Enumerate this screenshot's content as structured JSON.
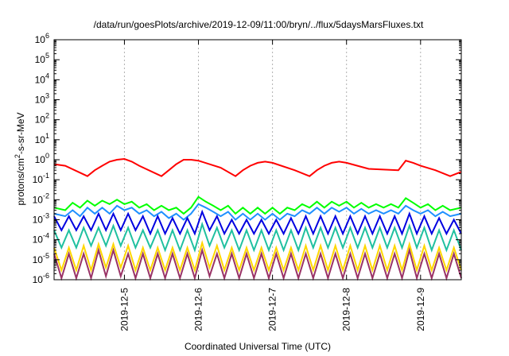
{
  "chart_data": {
    "type": "line",
    "title": "/data/run/goesPlots/archive/2019-12-09/11:00/bryn/../flux/5daysMarsFluxes.txt",
    "xlabel": "Coordinated Universal Time (UTC)",
    "ylabel": "protons/cm²-s-sr-MeV",
    "ylabel_parts": {
      "pre": "protons/cm",
      "sup": "2",
      "post": "-s-sr-MeV"
    },
    "yscale": "log",
    "ylim": [
      1e-06,
      1000000.0
    ],
    "xlim": [
      4.05,
      9.55
    ],
    "grid": "x-only",
    "x_ticks": [
      {
        "value": 5,
        "label": "2019-12-5"
      },
      {
        "value": 6,
        "label": "2019-12-6"
      },
      {
        "value": 7,
        "label": "2019-12-7"
      },
      {
        "value": 8,
        "label": "2019-12-8"
      },
      {
        "value": 9,
        "label": "2019-12-9"
      }
    ],
    "y_ticks": [
      {
        "exp": -6,
        "base": "10",
        "sup": "-6"
      },
      {
        "exp": -5,
        "base": "10",
        "sup": "-5"
      },
      {
        "exp": -4,
        "base": "10",
        "sup": "-4"
      },
      {
        "exp": -3,
        "base": "10",
        "sup": "-3"
      },
      {
        "exp": -2,
        "base": "10",
        "sup": "-2"
      },
      {
        "exp": -1,
        "base": "10",
        "sup": "-1"
      },
      {
        "exp": 0,
        "base": "10",
        "sup": "0"
      },
      {
        "exp": 1,
        "base": "10",
        "sup": "1"
      },
      {
        "exp": 2,
        "base": "10",
        "sup": "2"
      },
      {
        "exp": 3,
        "base": "10",
        "sup": "3"
      },
      {
        "exp": 4,
        "base": "10",
        "sup": "4"
      },
      {
        "exp": 5,
        "base": "10",
        "sup": "5"
      },
      {
        "exp": 6,
        "base": "10",
        "sup": "6"
      }
    ],
    "series": [
      {
        "color": "#ff0000",
        "x": [
          4.05,
          4.2,
          4.5,
          4.6,
          4.7,
          4.8,
          4.9,
          5.0,
          5.1,
          5.2,
          5.5,
          5.6,
          5.7,
          5.8,
          5.9,
          6.0,
          6.3,
          6.5,
          6.6,
          6.7,
          6.8,
          6.9,
          7.0,
          7.3,
          7.5,
          7.6,
          7.7,
          7.8,
          7.9,
          8.0,
          8.3,
          8.7,
          8.8,
          8.9,
          9.0,
          9.2,
          9.4,
          9.55
        ],
        "y": [
          0.6,
          0.5,
          0.15,
          0.3,
          0.5,
          0.8,
          1.0,
          1.1,
          0.8,
          0.5,
          0.15,
          0.3,
          0.6,
          1.0,
          1.0,
          0.9,
          0.4,
          0.15,
          0.3,
          0.5,
          0.7,
          0.8,
          0.7,
          0.3,
          0.15,
          0.3,
          0.5,
          0.7,
          0.8,
          0.7,
          0.35,
          0.3,
          0.9,
          0.7,
          0.5,
          0.3,
          0.15,
          0.25
        ]
      },
      {
        "color": "#00ff00",
        "x": [
          4.05,
          4.2,
          4.3,
          4.4,
          4.5,
          4.6,
          4.7,
          4.8,
          4.9,
          5.0,
          5.1,
          5.2,
          5.3,
          5.4,
          5.5,
          5.6,
          5.7,
          5.8,
          5.9,
          6.0,
          6.1,
          6.2,
          6.3,
          6.4,
          6.5,
          6.6,
          6.7,
          6.8,
          6.9,
          7.0,
          7.1,
          7.2,
          7.3,
          7.4,
          7.5,
          7.6,
          7.7,
          7.8,
          7.9,
          8.0,
          8.1,
          8.2,
          8.3,
          8.4,
          8.5,
          8.6,
          8.7,
          8.8,
          8.9,
          9.0,
          9.1,
          9.2,
          9.3,
          9.4,
          9.55
        ],
        "y": [
          0.004,
          0.003,
          0.007,
          0.004,
          0.009,
          0.005,
          0.009,
          0.006,
          0.01,
          0.006,
          0.008,
          0.004,
          0.006,
          0.003,
          0.005,
          0.003,
          0.004,
          0.002,
          0.004,
          0.014,
          0.008,
          0.005,
          0.003,
          0.005,
          0.002,
          0.004,
          0.002,
          0.004,
          0.002,
          0.004,
          0.002,
          0.004,
          0.003,
          0.006,
          0.004,
          0.008,
          0.004,
          0.008,
          0.005,
          0.008,
          0.004,
          0.007,
          0.004,
          0.006,
          0.004,
          0.006,
          0.004,
          0.012,
          0.007,
          0.004,
          0.006,
          0.003,
          0.005,
          0.003,
          0.004
        ]
      },
      {
        "color": "#1e90ff",
        "x": [
          4.05,
          4.2,
          4.3,
          4.4,
          4.5,
          4.6,
          4.7,
          4.8,
          4.9,
          5.0,
          5.1,
          5.2,
          5.3,
          5.4,
          5.5,
          5.6,
          5.7,
          5.8,
          5.9,
          6.0,
          6.1,
          6.2,
          6.3,
          6.4,
          6.5,
          6.6,
          6.7,
          6.8,
          6.9,
          7.0,
          7.1,
          7.2,
          7.3,
          7.4,
          7.5,
          7.6,
          7.7,
          7.8,
          7.9,
          8.0,
          8.1,
          8.2,
          8.3,
          8.4,
          8.5,
          8.6,
          8.7,
          8.8,
          8.9,
          9.0,
          9.1,
          9.2,
          9.3,
          9.4,
          9.55
        ],
        "y": [
          0.002,
          0.0015,
          0.003,
          0.0015,
          0.004,
          0.002,
          0.004,
          0.002,
          0.005,
          0.003,
          0.004,
          0.002,
          0.003,
          0.0015,
          0.0025,
          0.0012,
          0.002,
          0.001,
          0.002,
          0.006,
          0.004,
          0.0025,
          0.0015,
          0.0025,
          0.001,
          0.002,
          0.001,
          0.002,
          0.001,
          0.002,
          0.001,
          0.002,
          0.0015,
          0.003,
          0.002,
          0.004,
          0.002,
          0.004,
          0.0025,
          0.004,
          0.002,
          0.0035,
          0.002,
          0.003,
          0.002,
          0.003,
          0.002,
          0.005,
          0.003,
          0.002,
          0.003,
          0.0015,
          0.0025,
          0.0015,
          0.002
        ]
      },
      {
        "color": "#0000e0",
        "x": [
          4.05,
          4.15,
          4.25,
          4.35,
          4.45,
          4.55,
          4.65,
          4.75,
          4.85,
          4.95,
          5.05,
          5.15,
          5.25,
          5.35,
          5.45,
          5.55,
          5.65,
          5.75,
          5.85,
          5.95,
          6.05,
          6.15,
          6.25,
          6.35,
          6.45,
          6.55,
          6.65,
          6.75,
          6.85,
          6.95,
          7.05,
          7.15,
          7.25,
          7.35,
          7.45,
          7.55,
          7.65,
          7.75,
          7.85,
          7.95,
          8.05,
          8.15,
          8.25,
          8.35,
          8.45,
          8.55,
          8.65,
          8.75,
          8.85,
          8.95,
          9.05,
          9.15,
          9.25,
          9.35,
          9.45,
          9.55
        ],
        "y": [
          0.0015,
          0.0003,
          0.0015,
          0.0003,
          0.0015,
          0.0003,
          0.002,
          0.0003,
          0.002,
          0.0003,
          0.002,
          0.0003,
          0.0015,
          0.0002,
          0.0015,
          0.0002,
          0.0012,
          0.0002,
          0.0012,
          0.0002,
          0.0025,
          0.0003,
          0.0015,
          0.0002,
          0.001,
          0.0002,
          0.001,
          0.0002,
          0.001,
          0.0002,
          0.001,
          0.0002,
          0.0012,
          0.0002,
          0.0015,
          0.0002,
          0.0015,
          0.0002,
          0.0015,
          0.0002,
          0.0015,
          0.0002,
          0.0015,
          0.0002,
          0.0015,
          0.0002,
          0.0015,
          0.0002,
          0.002,
          0.0002,
          0.0015,
          0.0002,
          0.0012,
          0.0002,
          0.001,
          0.0002
        ]
      },
      {
        "color": "#20c0a0",
        "x": [
          4.05,
          4.15,
          4.25,
          4.35,
          4.45,
          4.55,
          4.65,
          4.75,
          4.85,
          4.95,
          5.05,
          5.15,
          5.25,
          5.35,
          5.45,
          5.55,
          5.65,
          5.75,
          5.85,
          5.95,
          6.05,
          6.15,
          6.25,
          6.35,
          6.45,
          6.55,
          6.65,
          6.75,
          6.85,
          6.95,
          7.05,
          7.15,
          7.25,
          7.35,
          7.45,
          7.55,
          7.65,
          7.75,
          7.85,
          7.95,
          8.05,
          8.15,
          8.25,
          8.35,
          8.45,
          8.55,
          8.65,
          8.75,
          8.85,
          8.95,
          9.05,
          9.15,
          9.25,
          9.35,
          9.45,
          9.55
        ],
        "y": [
          0.0003,
          4e-05,
          0.0003,
          4e-05,
          0.0004,
          5e-05,
          0.0004,
          5e-05,
          0.0005,
          5e-05,
          0.0004,
          4e-05,
          0.0003,
          4e-05,
          0.0003,
          3e-05,
          0.0003,
          3e-05,
          0.0003,
          3e-05,
          0.0006,
          5e-05,
          0.0004,
          4e-05,
          0.0003,
          3e-05,
          0.0003,
          3e-05,
          0.0003,
          3e-05,
          0.0003,
          3e-05,
          0.0003,
          3e-05,
          0.0004,
          4e-05,
          0.0004,
          4e-05,
          0.0004,
          4e-05,
          0.0004,
          4e-05,
          0.0004,
          4e-05,
          0.0004,
          4e-05,
          0.0004,
          4e-05,
          0.0005,
          4e-05,
          0.0004,
          3e-05,
          0.0003,
          3e-05,
          0.0003,
          3e-05
        ]
      },
      {
        "color": "#ffd700",
        "x": [
          4.05,
          4.15,
          4.25,
          4.35,
          4.45,
          4.55,
          4.65,
          4.75,
          4.85,
          4.95,
          5.05,
          5.15,
          5.25,
          5.35,
          5.45,
          5.55,
          5.65,
          5.75,
          5.85,
          5.95,
          6.05,
          6.15,
          6.25,
          6.35,
          6.45,
          6.55,
          6.65,
          6.75,
          6.85,
          6.95,
          7.05,
          7.15,
          7.25,
          7.35,
          7.45,
          7.55,
          7.65,
          7.75,
          7.85,
          7.95,
          8.05,
          8.15,
          8.25,
          8.35,
          8.45,
          8.55,
          8.65,
          8.75,
          8.85,
          8.95,
          9.05,
          9.15,
          9.25,
          9.35,
          9.45,
          9.55
        ],
        "y": [
          4e-05,
          3e-06,
          4e-05,
          3e-06,
          5e-05,
          3e-06,
          6e-05,
          4e-06,
          6e-05,
          4e-06,
          5e-05,
          3e-06,
          4e-05,
          3e-06,
          4e-05,
          3e-06,
          4e-05,
          3e-06,
          4e-05,
          3e-06,
          7e-05,
          4e-06,
          5e-05,
          3e-06,
          4e-05,
          3e-06,
          4e-05,
          3e-06,
          4e-05,
          3e-06,
          4e-05,
          3e-06,
          4e-05,
          3e-06,
          5e-05,
          3e-06,
          5e-05,
          3e-06,
          5e-05,
          3e-06,
          5e-05,
          3e-06,
          5e-05,
          3e-06,
          5e-05,
          3e-06,
          5e-05,
          3e-06,
          6e-05,
          3e-06,
          5e-05,
          3e-06,
          4e-05,
          3e-06,
          4e-05,
          3e-06
        ]
      },
      {
        "color": "#993366",
        "x": [
          4.05,
          4.15,
          4.25,
          4.35,
          4.45,
          4.55,
          4.65,
          4.75,
          4.85,
          4.95,
          5.05,
          5.15,
          5.25,
          5.35,
          5.45,
          5.55,
          5.65,
          5.75,
          5.85,
          5.95,
          6.05,
          6.15,
          6.25,
          6.35,
          6.45,
          6.55,
          6.65,
          6.75,
          6.85,
          6.95,
          7.05,
          7.15,
          7.25,
          7.35,
          7.45,
          7.55,
          7.65,
          7.75,
          7.85,
          7.95,
          8.05,
          8.15,
          8.25,
          8.35,
          8.45,
          8.55,
          8.65,
          8.75,
          8.85,
          8.95,
          9.05,
          9.15,
          9.25,
          9.35,
          9.45,
          9.55
        ],
        "y": [
          2e-05,
          1.2e-06,
          2e-05,
          1.2e-06,
          2e-05,
          1.2e-06,
          3e-05,
          1.5e-06,
          3e-05,
          1.5e-06,
          2e-05,
          1.2e-06,
          2e-05,
          1.2e-06,
          2e-05,
          1.2e-06,
          2e-05,
          1.2e-06,
          2e-05,
          1.2e-06,
          3e-05,
          1.5e-06,
          2e-05,
          1.2e-06,
          2e-05,
          1.2e-06,
          2e-05,
          1.2e-06,
          2e-05,
          1.2e-06,
          2e-05,
          1.2e-06,
          2e-05,
          1.2e-06,
          2e-05,
          1.2e-06,
          2e-05,
          1.2e-06,
          2e-05,
          1.2e-06,
          2e-05,
          1.2e-06,
          2e-05,
          1.2e-06,
          2e-05,
          1.2e-06,
          2e-05,
          1.2e-06,
          3e-05,
          1.2e-06,
          2e-05,
          1.2e-06,
          2e-05,
          1.2e-06,
          2e-05,
          1.2e-06
        ]
      }
    ]
  }
}
